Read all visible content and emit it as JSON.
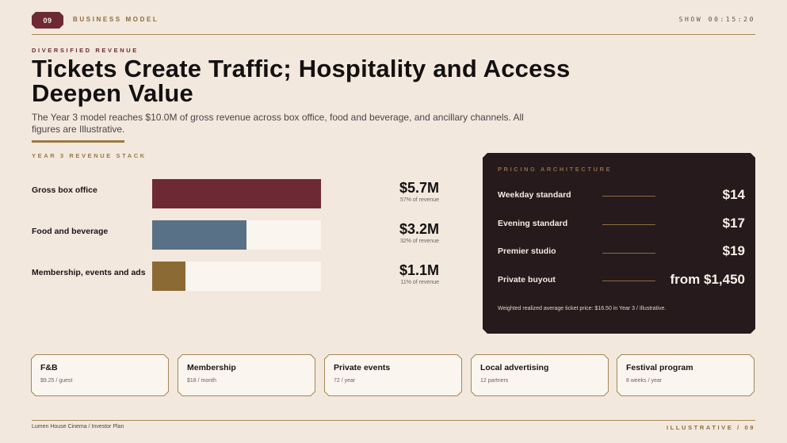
{
  "header": {
    "slide_number": "09",
    "section": "BUSINESS MODEL",
    "timer": "SHOW 00:15:20"
  },
  "hero": {
    "eyebrow": "DIVERSIFIED REVENUE",
    "title": "Tickets Create Traffic; Hospitality and Access Deepen Value",
    "subtitle": "The Year 3 model reaches $10.0M of gross revenue across box office, food and beverage, and ancillary channels. All figures are Illustrative."
  },
  "revenue_stack": {
    "label": "YEAR 3 REVENUE STACK",
    "items": [
      {
        "label": "Gross box office",
        "amount": "$5.7M",
        "share_text": "57% of revenue",
        "fill_fraction": 1.0,
        "color": "#6e2a34"
      },
      {
        "label": "Food and beverage",
        "amount": "$3.2M",
        "share_text": "32% of revenue",
        "fill_fraction": 0.56,
        "color": "#587186"
      },
      {
        "label": "Membership, events and ads",
        "amount": "$1.1M",
        "share_text": "11% of revenue",
        "fill_fraction": 0.195,
        "color": "#8c6a33"
      }
    ]
  },
  "pricing": {
    "title": "PRICING ARCHITECTURE",
    "items": [
      {
        "label": "Weekday standard",
        "value": "$14"
      },
      {
        "label": "Evening standard",
        "value": "$17"
      },
      {
        "label": "Premier studio",
        "value": "$19"
      },
      {
        "label": "Private buyout",
        "value": "from $1,450"
      }
    ],
    "note": "Weighted realized average ticket price: $16.50 in Year 3 / Illustrative."
  },
  "channels": [
    {
      "title": "F&B",
      "sub": "$9.25 / guest"
    },
    {
      "title": "Membership",
      "sub": "$18 / month"
    },
    {
      "title": "Private events",
      "sub": "72 / year"
    },
    {
      "title": "Local advertising",
      "sub": "12 partners"
    },
    {
      "title": "Festival program",
      "sub": "8 weeks / year"
    }
  ],
  "footer": {
    "left": "Lumen House Cinema / Investor Plan",
    "right": "ILLUSTRATIVE / 09"
  }
}
